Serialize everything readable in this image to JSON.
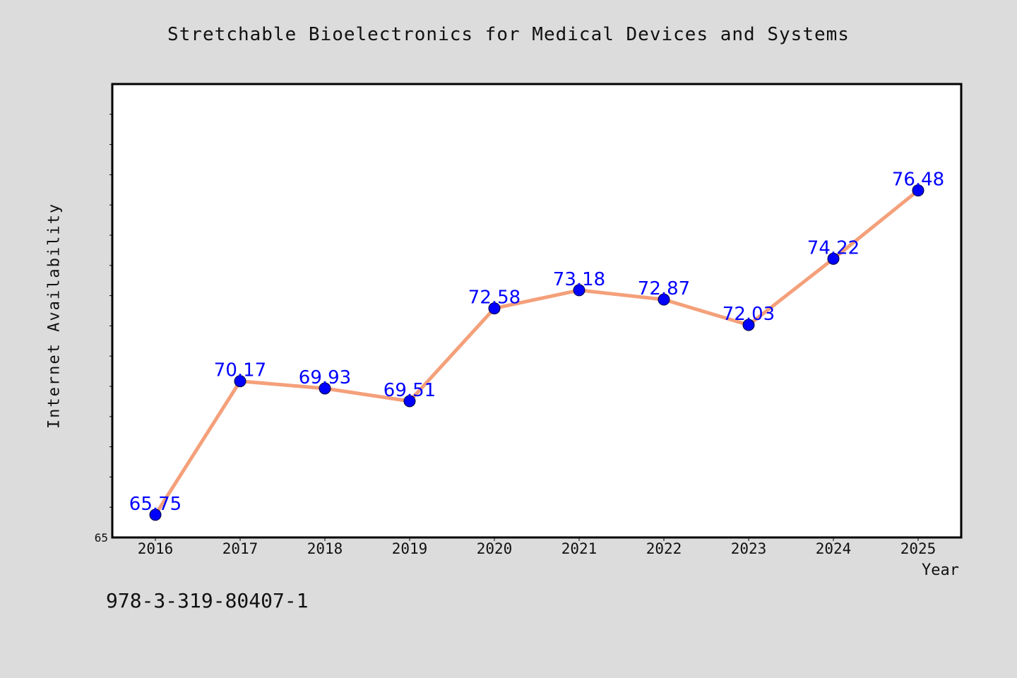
{
  "chart_data": {
    "type": "line",
    "title": "Stretchable Bioelectronics for Medical Devices and Systems",
    "xlabel": "Year",
    "ylabel": "Internet Availability",
    "categories": [
      "2016",
      "2017",
      "2018",
      "2019",
      "2020",
      "2021",
      "2022",
      "2023",
      "2024",
      "2025"
    ],
    "series": [
      {
        "values": [
          65.75,
          70.17,
          69.93,
          69.51,
          72.58,
          73.18,
          72.87,
          72.03,
          74.22,
          76.48
        ]
      }
    ],
    "data_labels": [
      "65.75",
      "70.17",
      "69.93",
      "69.51",
      "72.58",
      "73.18",
      "72.87",
      "72.03",
      "74.22",
      "76.48"
    ],
    "ylim": [
      65,
      80
    ],
    "y_tick_labels": [
      "65"
    ],
    "grid": false,
    "legend": "none",
    "colors": {
      "line": "#f4a07a",
      "marker": "#0000ff",
      "data_label": "#0000ff",
      "background": "#dcdcdc",
      "plot_area": "#ffffff"
    }
  },
  "footer_text": "978-3-319-80407-1"
}
